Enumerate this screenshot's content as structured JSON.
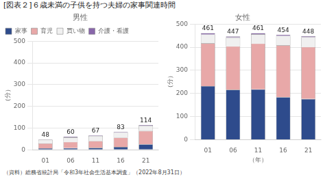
{
  "title": "[図表２]６歳未満の子供を持つ夫婦の家事関連時間",
  "annotations": [
    "（資料）総務省統計局「令和3年社会生活基本調査」（2022年8月31日）"
  ],
  "chart_data": [
    {
      "type": "bar",
      "subtitle": "男性",
      "stacked": true,
      "categories": [
        "01",
        "06",
        "11",
        "16",
        "21"
      ],
      "series": [
        {
          "name": "家事",
          "color": "#2e4b8c",
          "values": [
            7,
            8,
            9,
            13,
            25
          ]
        },
        {
          "name": "育児",
          "color": "#e8a8a8",
          "values": [
            22,
            28,
            31,
            43,
            62
          ]
        },
        {
          "name": "買い物",
          "color": "#f0f0f0",
          "values": [
            17,
            21,
            24,
            24,
            24
          ]
        },
        {
          "name": "介護・看護",
          "color": "#8866aa",
          "values": [
            2,
            3,
            3,
            3,
            3
          ]
        }
      ],
      "totals": [
        48,
        60,
        67,
        83,
        114
      ],
      "ylabel": "（分）",
      "ylim": [
        0,
        500
      ],
      "yticks": [
        0,
        100,
        200,
        300,
        400,
        500
      ],
      "grid": true,
      "legend": "upper left"
    },
    {
      "type": "bar",
      "subtitle": "女性",
      "stacked": true,
      "categories": [
        "01",
        "06",
        "11",
        "16",
        "21"
      ],
      "series": [
        {
          "name": "家事",
          "color": "#2e4b8c",
          "values": [
            232,
            216,
            218,
            184,
            176
          ]
        },
        {
          "name": "育児",
          "color": "#e8a8a8",
          "values": [
            185,
            188,
            198,
            224,
            225
          ]
        },
        {
          "name": "買い物",
          "color": "#f0f0f0",
          "values": [
            38,
            38,
            40,
            41,
            42
          ]
        },
        {
          "name": "介護・看護",
          "color": "#8866aa",
          "values": [
            6,
            5,
            5,
            5,
            5
          ]
        }
      ],
      "totals": [
        461,
        447,
        461,
        454,
        448
      ],
      "ylabel": "（分）",
      "xlabel": "（年）",
      "ylim": [
        0,
        500
      ],
      "yticks": [
        0,
        100,
        200,
        300,
        400,
        500
      ],
      "grid": true
    }
  ]
}
